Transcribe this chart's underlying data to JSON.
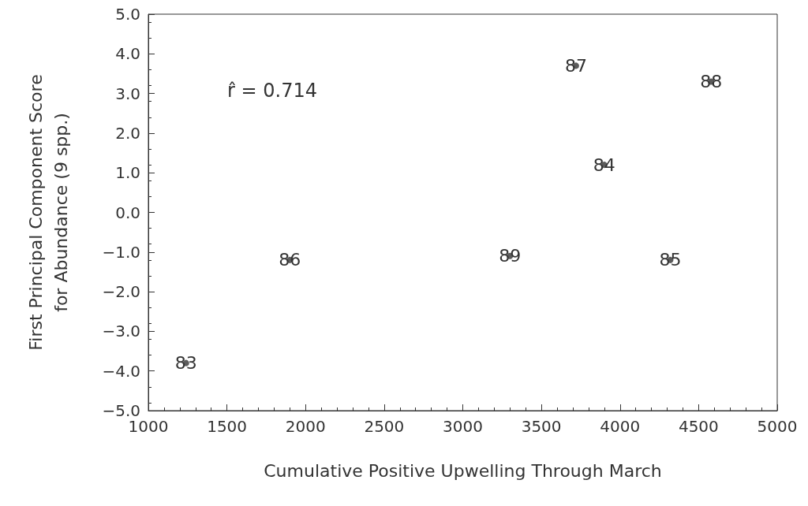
{
  "chart_data": {
    "type": "scatter",
    "xlabel": "Cumulative Positive Upwelling Through March",
    "ylabel": "First Principal Component Score\nfor Abundance (9 spp.)",
    "annotations": [
      "r̂ = 0.714",
      {
        "text": "83",
        "x": 1240,
        "y": -3.8
      },
      {
        "text": "86",
        "x": 1900,
        "y": -1.2
      },
      {
        "text": "89",
        "x": 3300,
        "y": -1.1
      },
      {
        "text": "87",
        "x": 3720,
        "y": 3.7
      },
      {
        "text": "84",
        "x": 3900,
        "y": 1.2
      },
      {
        "text": "85",
        "x": 4320,
        "y": -1.2
      },
      {
        "text": "88",
        "x": 4580,
        "y": 3.3
      }
    ],
    "x": [
      1240,
      1900,
      3300,
      3720,
      3900,
      4320,
      4580
    ],
    "values": [
      -3.8,
      -1.2,
      -1.1,
      3.7,
      1.2,
      -1.2,
      3.3
    ],
    "color": "#333333",
    "xlim": [
      1000,
      5000
    ],
    "xticks": [
      1000,
      1500,
      2000,
      2500,
      3000,
      3500,
      4000,
      4500,
      5000
    ],
    "ylim": [
      -5,
      5
    ],
    "yticks": [
      {
        "value": -5,
        "label": "−5.0"
      },
      {
        "value": -4,
        "label": "−4.0"
      },
      {
        "value": -3,
        "label": "−3.0"
      },
      {
        "value": -2,
        "label": "−2.0"
      },
      {
        "value": -1,
        "label": "−1.0"
      },
      {
        "value": 0,
        "label": "0.0"
      },
      {
        "value": 1,
        "label": "1.0"
      },
      {
        "value": 2,
        "label": "2.0"
      },
      {
        "value": 3,
        "label": "3.0"
      },
      {
        "value": 4,
        "label": "4.0"
      },
      {
        "value": 5,
        "label": "5.0"
      }
    ],
    "grid": false
  }
}
